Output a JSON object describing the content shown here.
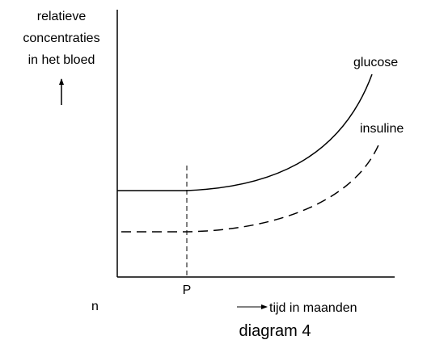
{
  "y_axis_label": [
    "relatieve",
    "concentraties",
    "in het bloed"
  ],
  "x_axis_label": "tijd in maanden",
  "marker": "P",
  "curves": {
    "glucose": "glucose",
    "insuline": "insuline"
  },
  "caption": "diagram 4",
  "fragment": "n"
}
